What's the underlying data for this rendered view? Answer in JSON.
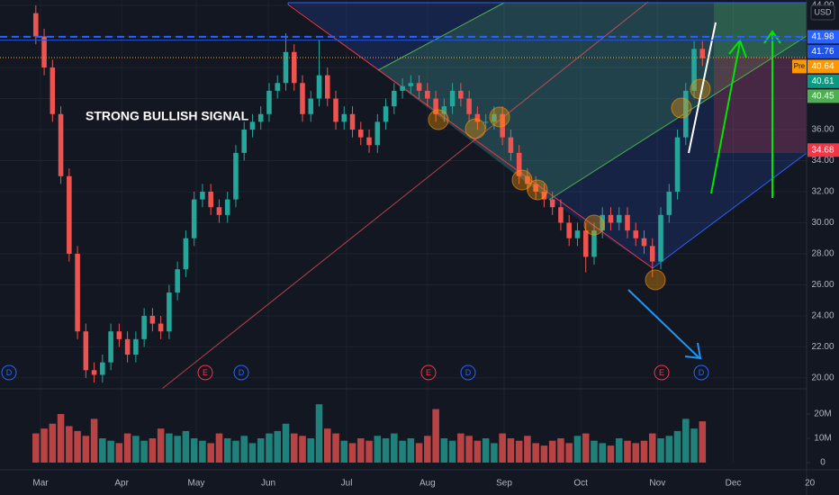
{
  "chart_data": {
    "type": "candlestick",
    "currency": "USD",
    "annotation": "STRONG BULLISH SIGNAL",
    "up_color": "#26a69a",
    "down_color": "#ef5350",
    "grid": true,
    "candles": {
      "open": [
        43.5,
        42,
        40,
        37,
        33,
        28,
        23,
        20.5,
        20.2,
        21,
        23,
        22.5,
        21.5,
        22.5,
        24,
        23.5,
        23,
        25.5,
        27,
        29,
        31.5,
        32,
        31,
        30.5,
        31.5,
        34.5,
        36,
        36.5,
        37,
        38.5,
        39,
        41,
        39,
        37,
        38,
        39.5,
        38,
        36.5,
        37,
        36,
        35.5,
        35,
        36.5,
        37.5,
        38.5,
        38.8,
        39,
        38.5,
        38,
        37,
        37.5,
        38.5,
        38,
        37,
        36.5,
        36.5,
        37,
        35.5,
        34.5,
        33,
        32.5,
        32,
        31.5,
        31,
        30,
        29,
        29.5,
        27.8,
        29.5,
        30.5,
        30,
        30.5,
        29.5,
        29,
        28.5,
        27.5,
        30.5,
        32,
        35.5,
        38.5,
        41.2
      ],
      "high": [
        44.0,
        42.5,
        40.5,
        37.5,
        33.5,
        28.5,
        23.5,
        21.0,
        21.5,
        23.5,
        23.5,
        23.0,
        23.0,
        24.5,
        24.5,
        24.0,
        26.0,
        27.5,
        29.5,
        32.0,
        32.5,
        32.5,
        31.5,
        32.0,
        35.0,
        36.5,
        37.0,
        37.5,
        39.0,
        39.5,
        42.2,
        41.5,
        39.5,
        38.5,
        41.8,
        40.0,
        38.5,
        37.5,
        37.5,
        36.5,
        36.0,
        37.0,
        38.0,
        39.0,
        39.3,
        39.5,
        39.5,
        39.0,
        38.5,
        38.0,
        39.0,
        39.0,
        38.5,
        37.5,
        37.0,
        37.5,
        37.5,
        36.0,
        35.0,
        33.5,
        33.0,
        32.5,
        32.0,
        31.5,
        30.5,
        30.0,
        30.0,
        30.0,
        31.0,
        31.0,
        31.0,
        31.0,
        30.0,
        29.5,
        29.0,
        31.0,
        32.5,
        36.0,
        39.0,
        41.7,
        41.7
      ],
      "low": [
        41.5,
        39.5,
        36.5,
        32.5,
        27.5,
        22.5,
        20.0,
        19.7,
        19.7,
        20.5,
        22.0,
        21.0,
        21.0,
        22.0,
        23.0,
        22.5,
        22.5,
        25.0,
        26.5,
        28.5,
        31.0,
        30.5,
        30.0,
        30.0,
        31.0,
        34.0,
        35.5,
        36.0,
        36.5,
        38.0,
        38.5,
        38.5,
        36.5,
        36.5,
        37.5,
        37.5,
        36.0,
        36.0,
        35.5,
        35.0,
        34.5,
        34.5,
        36.0,
        37.0,
        38.0,
        38.3,
        38.0,
        37.5,
        36.5,
        36.5,
        37.0,
        37.5,
        36.5,
        36.0,
        36.0,
        36.0,
        35.0,
        34.0,
        32.5,
        32.0,
        31.5,
        31.0,
        30.5,
        29.5,
        28.5,
        28.5,
        26.8,
        27.3,
        29.0,
        29.5,
        29.5,
        29.0,
        28.5,
        28.0,
        26.5,
        27.0,
        30.0,
        31.5,
        35.0,
        38.0,
        40.1
      ],
      "close": [
        42,
        40,
        37,
        33,
        28,
        23,
        20.5,
        20.2,
        21,
        23,
        22.5,
        21.5,
        22.5,
        24,
        23.5,
        23,
        25.5,
        27,
        29,
        31.5,
        32,
        31,
        30.5,
        31.5,
        34.5,
        36,
        36.5,
        37,
        38.5,
        39,
        41,
        39,
        37,
        38,
        39.5,
        38,
        36.5,
        37,
        36,
        35.5,
        35,
        36.5,
        37.5,
        38.5,
        38.8,
        39,
        38.5,
        38,
        37,
        37.5,
        38.5,
        38,
        37,
        36.5,
        36.5,
        37,
        35.5,
        34.5,
        33,
        32.5,
        32,
        31.5,
        31,
        30,
        29,
        29.5,
        27.8,
        29.5,
        30.5,
        30,
        30.5,
        29.5,
        29,
        28.5,
        27.5,
        30.5,
        32,
        35.5,
        38.5,
        41.2,
        40.6
      ]
    },
    "volume": {
      "values": [
        12,
        14,
        16,
        20,
        15,
        13,
        11,
        18,
        10,
        9,
        8,
        12,
        11,
        9,
        10,
        14,
        12,
        11,
        13,
        10,
        9,
        8,
        12,
        10,
        9,
        11,
        8,
        10,
        12,
        13,
        16,
        12,
        11,
        10,
        24,
        14,
        12,
        9,
        8,
        10,
        9,
        11,
        10,
        12,
        9,
        10,
        8,
        11,
        22,
        10,
        9,
        12,
        11,
        9,
        10,
        8,
        12,
        10,
        9,
        11,
        8,
        7,
        9,
        10,
        8,
        11,
        12,
        9,
        8,
        7,
        10,
        9,
        8,
        9,
        12,
        10,
        11,
        13,
        18,
        14,
        17
      ],
      "ylim": [
        0,
        27.4
      ],
      "yticks": [
        0,
        {
          "value": 10,
          "label": "10M"
        },
        {
          "value": 20,
          "label": "20M"
        }
      ]
    },
    "xlim": [
      -4.3,
      92.5
    ],
    "xticks": [
      {
        "value": 0.56,
        "label": "Mar"
      },
      {
        "value": 10.3,
        "label": "Apr"
      },
      {
        "value": 19.25,
        "label": "May"
      },
      {
        "value": 27.9,
        "label": "Jun"
      },
      {
        "value": 37.3,
        "label": "Jul"
      },
      {
        "value": 47.0,
        "label": "Aug"
      },
      {
        "value": 56.2,
        "label": "Sep"
      },
      {
        "value": 65.4,
        "label": "Oct"
      },
      {
        "value": 74.6,
        "label": "Nov"
      },
      {
        "value": 83.7,
        "label": "Dec"
      },
      {
        "value": 92.9,
        "label": "20"
      }
    ],
    "ylim": [
      19.3,
      44.35
    ],
    "yticks": [
      {
        "value": 20,
        "label": "20.00"
      },
      {
        "value": 22,
        "label": "22.00"
      },
      {
        "value": 24,
        "label": "24.00"
      },
      {
        "value": 26,
        "label": "26.00"
      },
      {
        "value": 28,
        "label": "28.00"
      },
      {
        "value": 30,
        "label": "30.00"
      },
      {
        "value": 32,
        "label": "32.00"
      },
      {
        "value": 34,
        "label": "34.00"
      },
      {
        "value": 36,
        "label": "36.00"
      },
      {
        "value": 38,
        "label": "38.00"
      },
      {
        "value": 40,
        "label": "40.00"
      },
      {
        "value": 42,
        "label": "42.00"
      },
      {
        "value": 44,
        "label": "44.00"
      }
    ],
    "price_labels": [
      {
        "value": 41.98,
        "label": "41.98",
        "color": "#2962ff",
        "line": "dashed"
      },
      {
        "value": 41.76,
        "label": "41.76",
        "color": "#1e53e5",
        "line": "solid"
      },
      {
        "value": 40.64,
        "label": "40.64",
        "color": "#ff9800",
        "line": "dotted",
        "tag": "Pre"
      },
      {
        "value": 40.61,
        "label": "40.61",
        "color": "#089981"
      },
      {
        "value": 40.45,
        "label": "40.45",
        "color": "#4caf50"
      },
      {
        "value": 34.68,
        "label": "34.68",
        "color": "#f23645"
      }
    ],
    "event_markers": [
      {
        "label": "D",
        "color": "#2962ff"
      },
      {
        "label": "E",
        "color": "#f23645"
      },
      {
        "label": "D",
        "color": "#2962ff"
      },
      {
        "label": "E",
        "color": "#f23645"
      },
      {
        "label": "D",
        "color": "#2962ff"
      },
      {
        "label": "E",
        "color": "#f23645"
      },
      {
        "label": "D",
        "color": "#2962ff"
      }
    ]
  }
}
